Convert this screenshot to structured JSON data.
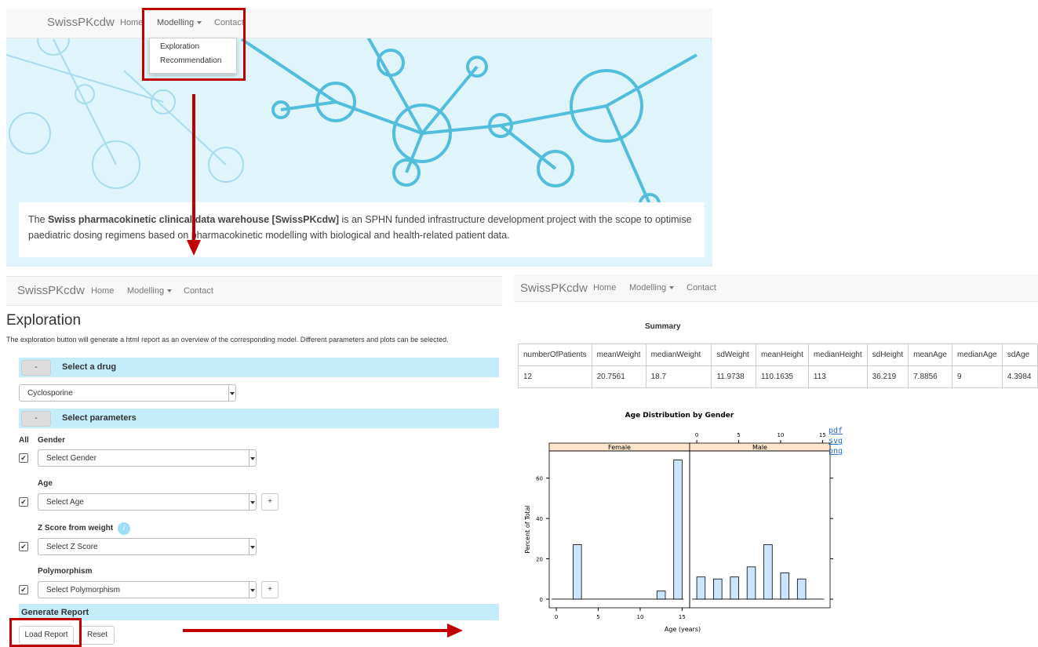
{
  "top": {
    "navbar": {
      "brand": "SwissPKcdw",
      "links": [
        "Home",
        "Modelling",
        "Contact"
      ]
    },
    "dropdown": [
      "Exploration",
      "Recommendation"
    ],
    "intro": {
      "lead": "The ",
      "bold": "Swiss pharmacokinetic clinical data warehouse [SwissPKcdw]",
      "rest": " is an SPHN funded infrastructure development project with the scope to optimise paediatric dosing regimens based on pharmacokinetic modelling with biological and health-related patient data."
    }
  },
  "exploration": {
    "navbar": {
      "brand": "SwissPKcdw",
      "links": [
        "Home",
        "Modelling",
        "Contact"
      ]
    },
    "title": "Exploration",
    "description": "The exploration button will generate a html report as an overview of the corresponding model. Different parameters and plots can be selected.",
    "collapse": "-",
    "drug_section": "Select a drug",
    "drug": "Cyclosporine",
    "param_section": "Select parameters",
    "all": "All",
    "parameters": [
      {
        "label": "Gender",
        "placeholder": "Select Gender"
      },
      {
        "label": "Age",
        "placeholder": "Select Age"
      },
      {
        "label": "Z Score from weight",
        "placeholder": "Select Z Score"
      },
      {
        "label": "Polymorphism",
        "placeholder": "Select Polymorphism"
      }
    ],
    "add": "+",
    "info": "i",
    "report_section": "Generate Report",
    "load": "Load Report",
    "reset": "Reset"
  },
  "report": {
    "navbar": {
      "brand": "SwissPKcdw",
      "links": [
        "Home",
        "Modelling",
        "Contact"
      ]
    },
    "summary": {
      "title": "Summary",
      "header": [
        "numberOfPatients",
        "meanWeight",
        "medianWeight",
        "sdWeight",
        "meanHeight",
        "medianHeight",
        "sdHeight",
        "meanAge",
        "medianAge",
        "sdAge"
      ],
      "rows": [
        [
          "12",
          "20.7561",
          "18.7",
          "11.9738",
          "110.1635",
          "113",
          "36.219",
          "7.8856",
          "9",
          "4.3984"
        ]
      ]
    },
    "histogram": {
      "title": "Age Distribution by Gender",
      "xlabel": "Age (years)",
      "ylabel": "Percent of Total",
      "color": "#cce5ff",
      "bins": [
        0,
        1,
        2,
        3,
        4,
        5,
        6,
        7,
        8,
        9,
        10,
        11,
        12,
        13,
        14,
        15
      ],
      "xlim": [
        -0.85,
        15.9
      ],
      "ylim": [
        -4.3,
        73.5
      ],
      "xticks": [
        0,
        5,
        10,
        15
      ],
      "yticks": [
        0,
        20,
        40,
        60
      ],
      "panels": [
        {
          "name": "Female",
          "values": [
            0,
            0,
            27,
            0,
            0,
            0,
            0,
            0,
            0,
            0,
            0,
            0,
            4,
            0,
            69
          ]
        },
        {
          "name": "Male",
          "values": [
            11,
            0,
            10,
            0,
            11,
            0,
            16,
            0,
            27,
            0,
            13,
            0,
            10,
            0,
            0
          ]
        }
      ]
    },
    "downloads": [
      "pdf",
      "svg",
      "png"
    ]
  }
}
